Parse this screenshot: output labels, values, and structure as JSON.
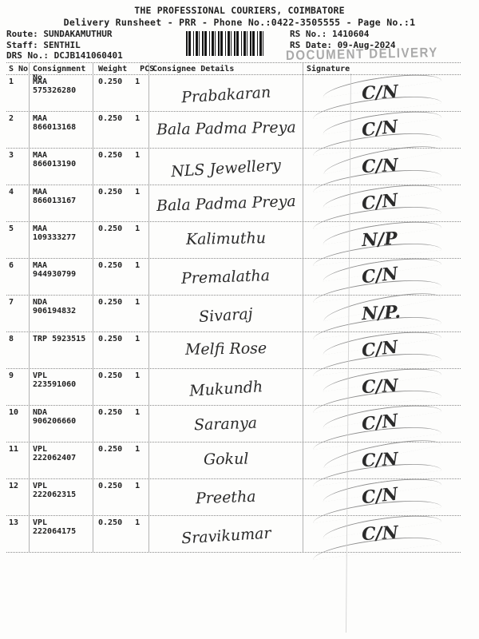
{
  "header": {
    "title": "THE PROFESSIONAL COURIERS, COIMBATORE",
    "subtitle": "Delivery Runsheet - PRR - Phone No.:0422-3505555 - Page No.:1",
    "route_label": "Route:",
    "route_value": "SUNDAKAMUTHUR",
    "staff_label": "Staff:",
    "staff_value": "SENTHIL",
    "drs_label": "DRS No.:",
    "drs_value": "DCJB141060401",
    "rs_no_label": "RS No.:",
    "rs_no_value": "1410604",
    "rs_date_label": "RS Date:",
    "rs_date_value": "09-Aug-2024",
    "stamp": "DOCUMENT DELIVERY",
    "barcode": "barcode-ean-style"
  },
  "colors": {
    "ink": "#222222",
    "handwriting_ink": "#2b2b2b",
    "stamp_gray": "#9b9b9b",
    "grid_line": "#b3b3b3",
    "paper": "#fdfdfc"
  },
  "table": {
    "headers": {
      "sno": "S No",
      "consignment": "Consignment No",
      "weight": "Weight",
      "pcs": "PCS",
      "consignee": "Consignee Details",
      "signature": "Signature"
    },
    "rows": [
      {
        "sno": "1",
        "consignment": "MAA 575326280",
        "weight": "0.250",
        "pcs": "1",
        "consignee": "Prabakaran",
        "sign": "C/N"
      },
      {
        "sno": "2",
        "consignment": "MAA 866013168",
        "weight": "0.250",
        "pcs": "1",
        "consignee": "Bala Padma Preya",
        "sign": "C/N"
      },
      {
        "sno": "3",
        "consignment": "MAA 866013190",
        "weight": "0.250",
        "pcs": "1",
        "consignee": "NLS Jewellery",
        "sign": "C/N"
      },
      {
        "sno": "4",
        "consignment": "MAA 866013167",
        "weight": "0.250",
        "pcs": "1",
        "consignee": "Bala Padma Preya",
        "sign": "C/N"
      },
      {
        "sno": "5",
        "consignment": "MAA 109333277",
        "weight": "0.250",
        "pcs": "1",
        "consignee": "Kalimuthu",
        "sign": "N/P"
      },
      {
        "sno": "6",
        "consignment": "MAA 944930799",
        "weight": "0.250",
        "pcs": "1",
        "consignee": "Premalatha",
        "sign": "C/N"
      },
      {
        "sno": "7",
        "consignment": "NDA 906194832",
        "weight": "0.250",
        "pcs": "1",
        "consignee": "Sivaraj",
        "sign": "N/P."
      },
      {
        "sno": "8",
        "consignment": "TRP 5923515",
        "weight": "0.250",
        "pcs": "1",
        "consignee": "Melfi Rose",
        "sign": "C/N"
      },
      {
        "sno": "9",
        "consignment": "VPL 223591060",
        "weight": "0.250",
        "pcs": "1",
        "consignee": "Mukundh",
        "sign": "C/N"
      },
      {
        "sno": "10",
        "consignment": "NDA 906206660",
        "weight": "0.250",
        "pcs": "1",
        "consignee": "Saranya",
        "sign": "C/N"
      },
      {
        "sno": "11",
        "consignment": "VPL 222062407",
        "weight": "0.250",
        "pcs": "1",
        "consignee": "Gokul",
        "sign": "C/N"
      },
      {
        "sno": "12",
        "consignment": "VPL 222062315",
        "weight": "0.250",
        "pcs": "1",
        "consignee": "Preetha",
        "sign": "C/N"
      },
      {
        "sno": "13",
        "consignment": "VPL 222064175",
        "weight": "0.250",
        "pcs": "1",
        "consignee": "Sravikumar",
        "sign": "C/N"
      }
    ]
  }
}
